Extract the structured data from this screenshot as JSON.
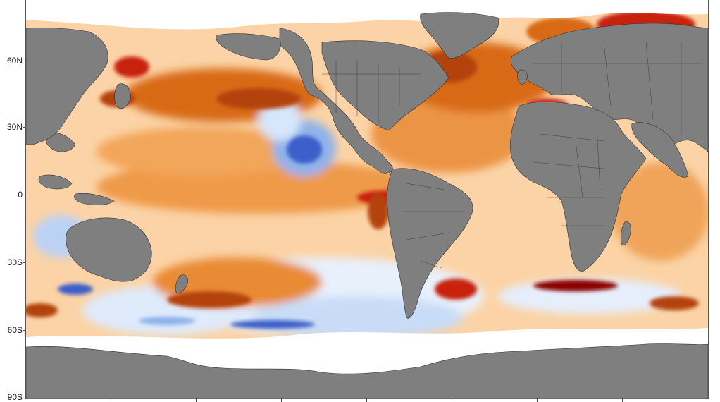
{
  "map": {
    "title": "",
    "colors": {
      "land": "#7f7f7f",
      "ice": "#ffffff",
      "warm_light": "#fbd3a6",
      "warm_mid": "#ef9a48",
      "warm_strong": "#d86a18",
      "warm_deep": "#b34208",
      "hot": "#c8200e",
      "very_hot": "#8a0303",
      "cool_light": "#d6e6fb",
      "cool_mid": "#8fb2ec",
      "cool_strong": "#3c5fc9",
      "neutral": "#fbfbf9",
      "border_lines": "#333333"
    },
    "lat_labels": [
      "60N",
      "30N",
      "0",
      "30S",
      "60S",
      "90S"
    ]
  }
}
